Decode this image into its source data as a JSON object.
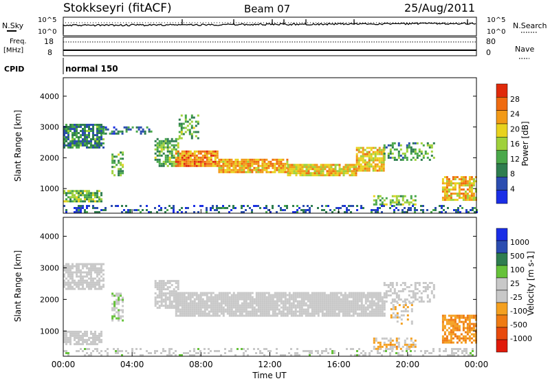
{
  "header": {
    "station": "Stokkseyri (fitACF)",
    "beam": "Beam 07",
    "date": "25/Aug/2011"
  },
  "top_panels": {
    "nsky_label": "N.Sky",
    "nsky_ticks": [
      "10^5",
      "10^0"
    ],
    "nsearch_label": "N.Search",
    "nsearch_ticks": [
      "10^5",
      "10^0"
    ],
    "freq_label_line1": "Freq.",
    "freq_label_line2": "[MHz]",
    "freq_ticks": [
      "18",
      "8"
    ],
    "nave_label": "Nave",
    "nave_ticks": [
      "80",
      "0"
    ],
    "cpid_label": "CPID",
    "cpid_value": "normal 150"
  },
  "colors": {
    "power_scale": [
      "#1a2ee6",
      "#2b4db0",
      "#2e7d4f",
      "#4aa84a",
      "#9fd13b",
      "#e8d21e",
      "#f29a17",
      "#ef6b10",
      "#e02a0a"
    ],
    "velocity_scale": [
      "#1a2ee6",
      "#2b4db0",
      "#2e7d4f",
      "#66c23a",
      "#c8c8c8",
      "#c8c8c8",
      "#f4a020",
      "#ef7b12",
      "#e84a0c",
      "#e01a0a"
    ],
    "ground_scatter": "#c8c8c8"
  },
  "chart_data": [
    {
      "type": "heatmap",
      "panel": "power",
      "xlabel": "Time UT",
      "ylabel": "Slant Range [km]",
      "x_ticks": [
        "00:00",
        "04:00",
        "08:00",
        "12:00",
        "16:00",
        "20:00",
        "00:00"
      ],
      "xlim_hours": [
        0,
        24
      ],
      "y_ticks": [
        1000,
        2000,
        3000,
        4000
      ],
      "ylim": [
        200,
        4600
      ],
      "colorbar": {
        "label": "Power [dB]",
        "ticks": [
          "4",
          "8",
          "12",
          "16",
          "20",
          "24",
          "28"
        ],
        "range": [
          0,
          30
        ]
      },
      "regions": [
        {
          "t": [
            0.0,
            2.3
          ],
          "r": [
            2300,
            3100
          ],
          "v": 9,
          "density": 0.75
        },
        {
          "t": [
            2.3,
            5.3
          ],
          "r": [
            2750,
            3000
          ],
          "v": 8,
          "density": 0.35
        },
        {
          "t": [
            5.3,
            6.7
          ],
          "r": [
            1700,
            2600
          ],
          "v": 12,
          "density": 0.7
        },
        {
          "t": [
            6.5,
            9.0
          ],
          "r": [
            1700,
            2200
          ],
          "v": 23,
          "density": 0.9
        },
        {
          "t": [
            9.0,
            13.0
          ],
          "r": [
            1500,
            1950
          ],
          "v": 21,
          "density": 0.85
        },
        {
          "t": [
            13.0,
            17.0
          ],
          "r": [
            1400,
            1750
          ],
          "v": 19,
          "density": 0.85
        },
        {
          "t": [
            17.0,
            18.6
          ],
          "r": [
            1550,
            2300
          ],
          "v": 19,
          "density": 0.8
        },
        {
          "t": [
            18.6,
            21.5
          ],
          "r": [
            1900,
            2500
          ],
          "v": 11,
          "density": 0.4
        },
        {
          "t": [
            0.0,
            2.2
          ],
          "r": [
            550,
            950
          ],
          "v": 13,
          "density": 0.7
        },
        {
          "t": [
            18.0,
            20.5
          ],
          "r": [
            450,
            750
          ],
          "v": 14,
          "density": 0.6
        },
        {
          "t": [
            22.0,
            24.0
          ],
          "r": [
            600,
            1400
          ],
          "v": 20,
          "density": 0.7
        },
        {
          "t": [
            2.8,
            3.4
          ],
          "r": [
            1400,
            2200
          ],
          "v": 12,
          "density": 0.55
        },
        {
          "t": [
            6.7,
            7.8
          ],
          "r": [
            2600,
            3400
          ],
          "v": 12,
          "density": 0.45
        },
        {
          "t": [
            0.0,
            24.0
          ],
          "r": [
            200,
            450
          ],
          "v": 6,
          "density": 0.3
        }
      ]
    },
    {
      "type": "heatmap",
      "panel": "velocity",
      "xlabel": "Time UT",
      "ylabel": "Slant Range [km]",
      "x_ticks": [
        "00:00",
        "04:00",
        "08:00",
        "12:00",
        "16:00",
        "20:00",
        "00:00"
      ],
      "xlim_hours": [
        0,
        24
      ],
      "y_ticks": [
        1000,
        2000,
        3000,
        4000
      ],
      "ylim": [
        200,
        4600
      ],
      "colorbar": {
        "label": "Velocity [m s-1]",
        "ticks": [
          "1000",
          "500",
          "100",
          "25",
          "-25",
          "-100",
          "-500",
          "-1000"
        ],
        "range": [
          -1200,
          1200
        ]
      },
      "regions": [
        {
          "t": [
            0.0,
            2.3
          ],
          "r": [
            2300,
            3100
          ],
          "v": 0,
          "density": 0.8
        },
        {
          "t": [
            5.3,
            6.7
          ],
          "r": [
            1700,
            2600
          ],
          "v": 0,
          "density": 0.75
        },
        {
          "t": [
            6.5,
            18.6
          ],
          "r": [
            1450,
            2200
          ],
          "v": 0,
          "density": 0.9
        },
        {
          "t": [
            18.6,
            21.5
          ],
          "r": [
            1900,
            2500
          ],
          "v": 0,
          "density": 0.5
        },
        {
          "t": [
            0.0,
            2.2
          ],
          "r": [
            550,
            950
          ],
          "v": 0,
          "density": 0.7
        },
        {
          "t": [
            18.0,
            20.5
          ],
          "r": [
            400,
            750
          ],
          "v": -300,
          "density": 0.6
        },
        {
          "t": [
            22.0,
            24.0
          ],
          "r": [
            600,
            1500
          ],
          "v": -450,
          "density": 0.7
        },
        {
          "t": [
            19.0,
            20.3
          ],
          "r": [
            1200,
            1900
          ],
          "v": -200,
          "density": 0.35
        },
        {
          "t": [
            2.8,
            3.4
          ],
          "r": [
            1300,
            2200
          ],
          "v": 150,
          "density": 0.5
        },
        {
          "t": [
            0.0,
            24.0
          ],
          "r": [
            200,
            450
          ],
          "v": 60,
          "density": 0.3
        }
      ]
    }
  ]
}
